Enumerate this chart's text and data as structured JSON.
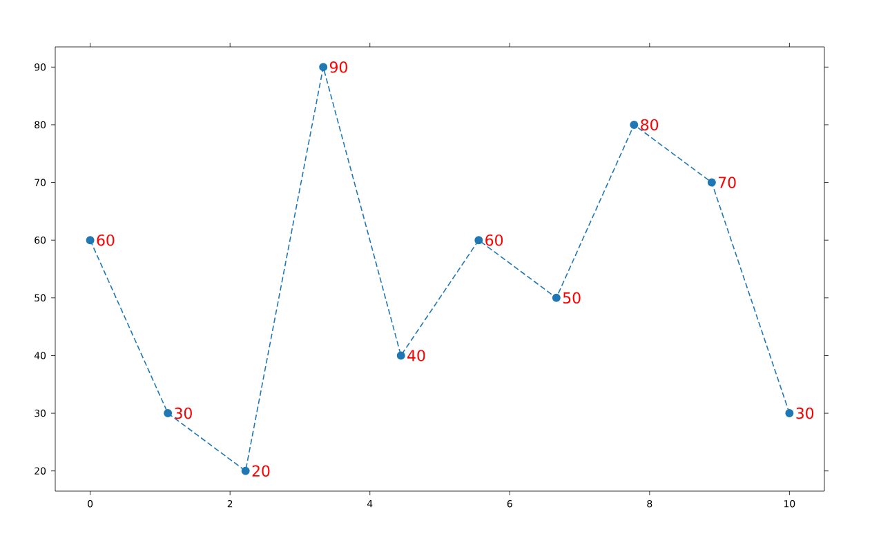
{
  "chart_data": {
    "type": "line",
    "x": [
      0,
      1.111,
      2.222,
      3.333,
      4.444,
      5.556,
      6.667,
      7.778,
      8.889,
      10
    ],
    "values": [
      60,
      30,
      20,
      90,
      40,
      60,
      50,
      80,
      70,
      30
    ],
    "color": "#1f77b4",
    "marker": "circle",
    "line_style": "dashed",
    "data_labels": true,
    "xlim": [
      -0.5,
      10.5
    ],
    "ylim": [
      16.5,
      93.5
    ],
    "xticks": [
      0,
      2,
      4,
      6,
      8,
      10
    ],
    "yticks": [
      20,
      30,
      40,
      50,
      60,
      70,
      80,
      90
    ],
    "grid": false
  }
}
